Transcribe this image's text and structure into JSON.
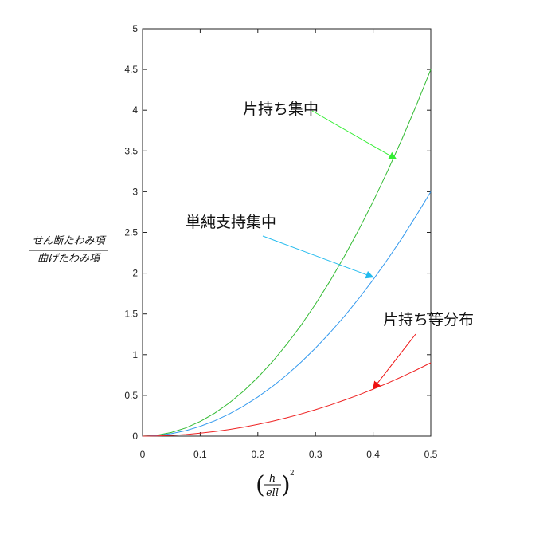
{
  "chart_data": {
    "type": "line",
    "title": "",
    "xlabel": {
      "numerator": "h",
      "denominator": "ell",
      "exponent": "2"
    },
    "ylabel": {
      "numerator": "せん断たわみ項",
      "denominator": "曲げたわみ項"
    },
    "xlim": [
      0,
      0.5
    ],
    "ylim": [
      0,
      5
    ],
    "xticks": [
      0,
      0.1,
      0.2,
      0.3,
      0.4,
      0.5
    ],
    "xtick_labels": [
      "0",
      "0.1",
      "0.2",
      "0.3",
      "0.4",
      "0.5"
    ],
    "yticks": [
      0,
      0.5,
      1,
      1.5,
      2,
      2.5,
      3,
      3.5,
      4,
      4.5,
      5
    ],
    "ytick_labels": [
      "0",
      "0.5",
      "1",
      "1.5",
      "2",
      "2.5",
      "3",
      "3.5",
      "4",
      "4.5",
      "5"
    ],
    "grid": false,
    "series": [
      {
        "name": "片持ち集中",
        "color": "#33bb33",
        "x": [
          0,
          0.025,
          0.05,
          0.075,
          0.1,
          0.125,
          0.15,
          0.175,
          0.2,
          0.225,
          0.25,
          0.275,
          0.3,
          0.325,
          0.35,
          0.375,
          0.4,
          0.425,
          0.45,
          0.475,
          0.5
        ],
        "y": [
          0,
          0.011,
          0.045,
          0.101,
          0.18,
          0.281,
          0.405,
          0.551,
          0.72,
          0.911,
          1.125,
          1.361,
          1.62,
          1.901,
          2.205,
          2.531,
          2.88,
          3.251,
          3.645,
          4.061,
          4.5
        ]
      },
      {
        "name": "単純支持集中",
        "color": "#3399ee",
        "x": [
          0,
          0.025,
          0.05,
          0.075,
          0.1,
          0.125,
          0.15,
          0.175,
          0.2,
          0.225,
          0.25,
          0.275,
          0.3,
          0.325,
          0.35,
          0.375,
          0.4,
          0.425,
          0.45,
          0.475,
          0.5
        ],
        "y": [
          0,
          0.0075,
          0.03,
          0.068,
          0.12,
          0.188,
          0.27,
          0.368,
          0.48,
          0.608,
          0.75,
          0.908,
          1.08,
          1.268,
          1.47,
          1.688,
          1.92,
          2.168,
          2.43,
          2.708,
          3.0
        ]
      },
      {
        "name": "片持ち等分布",
        "color": "#ee2222",
        "x": [
          0,
          0.025,
          0.05,
          0.075,
          0.1,
          0.125,
          0.15,
          0.175,
          0.2,
          0.225,
          0.25,
          0.275,
          0.3,
          0.325,
          0.35,
          0.375,
          0.4,
          0.425,
          0.45,
          0.475,
          0.5
        ],
        "y": [
          0,
          0.0023,
          0.009,
          0.02,
          0.036,
          0.056,
          0.081,
          0.11,
          0.144,
          0.182,
          0.225,
          0.272,
          0.324,
          0.38,
          0.441,
          0.506,
          0.576,
          0.65,
          0.729,
          0.812,
          0.9
        ]
      }
    ],
    "annotations": [
      {
        "text": "片持ち集中",
        "series": 0,
        "color": "#33ee33",
        "arrow_tip": [
          0.44,
          3.4
        ]
      },
      {
        "text": "単純支持集中",
        "series": 1,
        "color": "#22bbee",
        "arrow_tip": [
          0.4,
          1.95
        ]
      },
      {
        "text": "片持ち等分布",
        "series": 2,
        "color": "#ee1111",
        "arrow_tip": [
          0.4,
          0.58
        ]
      }
    ]
  }
}
